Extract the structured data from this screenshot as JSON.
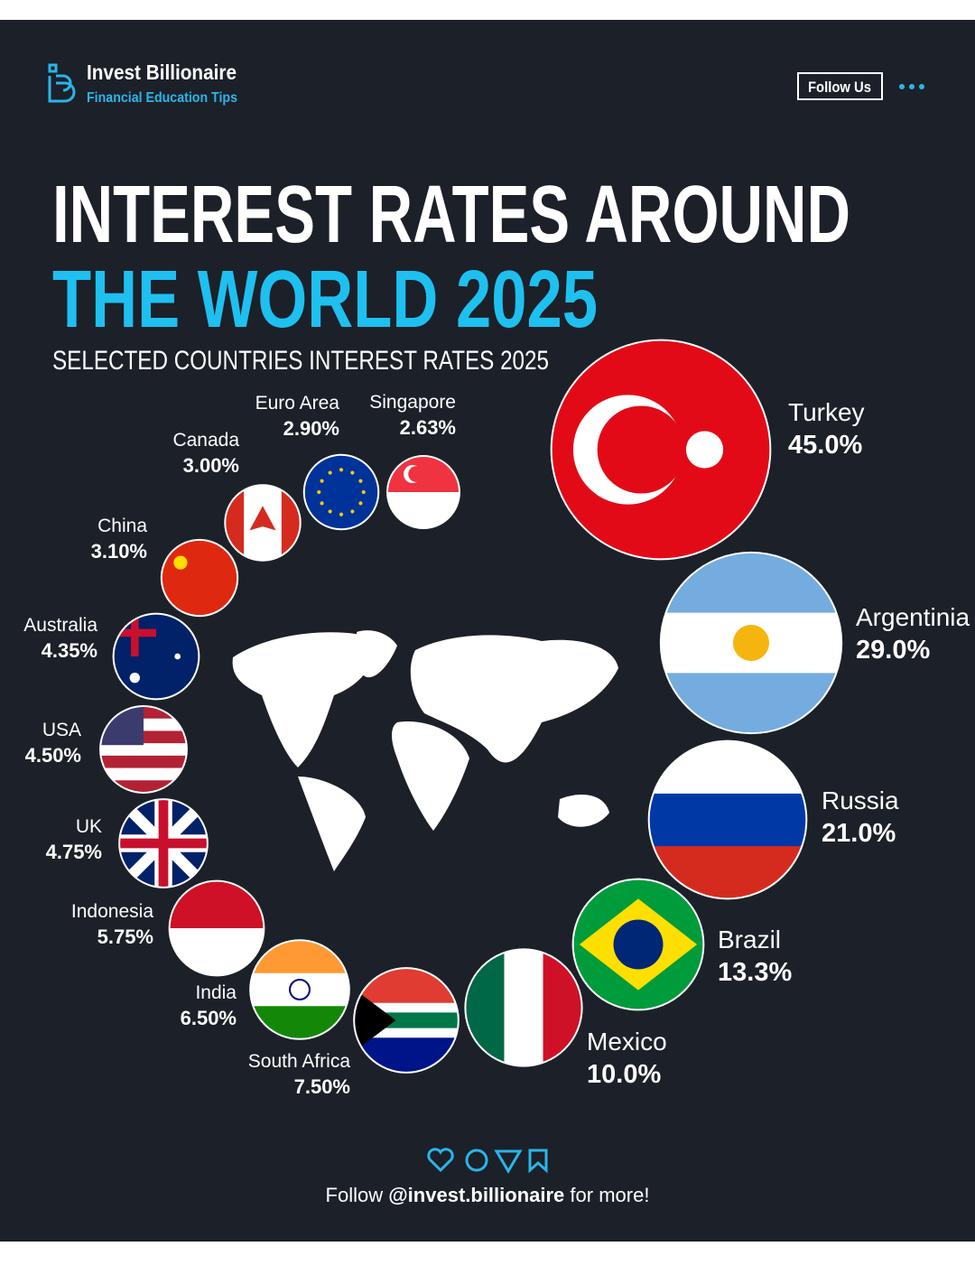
{
  "header": {
    "brand": "Invest Billionaire",
    "tagline": "Financial Education Tips",
    "follow_button": "Follow Us"
  },
  "chart_data": {
    "type": "bubble",
    "title": "INTEREST RATES AROUND",
    "title_line2": "THE WORLD 2025",
    "subtitle": "SELECTED COUNTRIES INTEREST RATES 2025",
    "categories": [
      "Turkey",
      "Argentinia",
      "Russia",
      "Brazil",
      "Mexico",
      "South Africa",
      "India",
      "Indonesia",
      "UK",
      "USA",
      "Australia",
      "China",
      "Canada",
      "Euro Area",
      "Singapore"
    ],
    "values": [
      45.0,
      29.0,
      21.0,
      13.3,
      10.0,
      7.5,
      6.5,
      5.75,
      4.75,
      4.5,
      4.35,
      3.1,
      3.0,
      2.9,
      2.63
    ],
    "value_labels": [
      "45.0%",
      "29.0%",
      "21.0%",
      "13.3%",
      "10.0%",
      "7.50%",
      "6.50%",
      "5.75%",
      "4.75%",
      "4.50%",
      "4.35%",
      "3.10%",
      "3.00%",
      "2.90%",
      "2.63%"
    ]
  },
  "footer": {
    "prefix": "Follow",
    "handle": "@invest.billionaire",
    "suffix": "for more!"
  }
}
